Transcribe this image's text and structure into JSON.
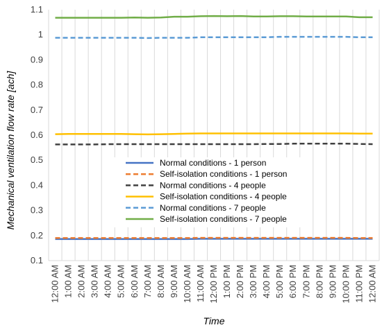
{
  "chart_data": {
    "type": "line",
    "xlabel": "Time",
    "ylabel": "Mechanical ventilation flow rate [ach]",
    "ylim": [
      0.1,
      1.1
    ],
    "yticks": [
      0.1,
      0.2,
      0.3,
      0.4,
      0.5,
      0.6,
      0.7,
      0.8,
      0.9,
      1,
      1.1
    ],
    "ytick_labels": [
      "0.1",
      "0.2",
      "0.3",
      "0.4",
      "0.5",
      "0.6",
      "0.7",
      "0.8",
      "0.9",
      "1",
      "1.1"
    ],
    "grid": "vertical",
    "legend_position": "center",
    "categories": [
      "12:00 AM",
      "1:00 AM",
      "2:00 AM",
      "3:00 AM",
      "4:00 AM",
      "5:00 AM",
      "6:00 AM",
      "7:00 AM",
      "8:00 AM",
      "9:00 AM",
      "10:00 AM",
      "11:00 AM",
      "12:00 PM",
      "1:00 PM",
      "2:00 PM",
      "3:00 PM",
      "4:00 PM",
      "5:00 PM",
      "6:00 PM",
      "7:00 PM",
      "8:00 PM",
      "9:00 PM",
      "10:00 PM",
      "11:00 PM",
      "12:00 AM"
    ],
    "series": [
      {
        "name": "Normal conditions - 1 person",
        "color": "#4472C4",
        "dash": "solid",
        "values": [
          0.186,
          0.186,
          0.186,
          0.186,
          0.186,
          0.186,
          0.186,
          0.186,
          0.186,
          0.186,
          0.186,
          0.187,
          0.187,
          0.187,
          0.187,
          0.187,
          0.187,
          0.187,
          0.187,
          0.187,
          0.187,
          0.187,
          0.187,
          0.187,
          0.187
        ]
      },
      {
        "name": "Self-isolation conditions - 1 person",
        "color": "#ED7D31",
        "dash": "dashed",
        "values": [
          0.19,
          0.19,
          0.19,
          0.19,
          0.19,
          0.19,
          0.19,
          0.19,
          0.19,
          0.19,
          0.19,
          0.191,
          0.191,
          0.191,
          0.191,
          0.191,
          0.191,
          0.191,
          0.191,
          0.191,
          0.191,
          0.191,
          0.191,
          0.19,
          0.19
        ]
      },
      {
        "name": "Normal conditions - 4 people",
        "color": "#404040",
        "dash": "dashed",
        "values": [
          0.563,
          0.563,
          0.563,
          0.563,
          0.564,
          0.564,
          0.564,
          0.564,
          0.564,
          0.564,
          0.564,
          0.564,
          0.564,
          0.564,
          0.564,
          0.564,
          0.565,
          0.565,
          0.566,
          0.566,
          0.566,
          0.566,
          0.566,
          0.565,
          0.564
        ]
      },
      {
        "name": "Self-isolation conditions - 4 people",
        "color": "#FFC000",
        "dash": "solid",
        "values": [
          0.604,
          0.605,
          0.605,
          0.605,
          0.605,
          0.605,
          0.604,
          0.603,
          0.604,
          0.605,
          0.606,
          0.607,
          0.607,
          0.607,
          0.607,
          0.607,
          0.607,
          0.607,
          0.607,
          0.607,
          0.607,
          0.607,
          0.607,
          0.606,
          0.606
        ]
      },
      {
        "name": "Normal conditions - 7 people",
        "color": "#5B9BD5",
        "dash": "dashed",
        "values": [
          0.988,
          0.988,
          0.988,
          0.988,
          0.988,
          0.988,
          0.988,
          0.987,
          0.988,
          0.988,
          0.988,
          0.99,
          0.99,
          0.99,
          0.99,
          0.99,
          0.99,
          0.992,
          0.992,
          0.992,
          0.992,
          0.992,
          0.992,
          0.99,
          0.99
        ]
      },
      {
        "name": "Self-isolation conditions - 7 people",
        "color": "#70AD47",
        "dash": "solid",
        "values": [
          1.068,
          1.068,
          1.068,
          1.068,
          1.068,
          1.068,
          1.069,
          1.068,
          1.069,
          1.072,
          1.072,
          1.074,
          1.075,
          1.074,
          1.075,
          1.073,
          1.073,
          1.074,
          1.074,
          1.073,
          1.073,
          1.073,
          1.073,
          1.07,
          1.07
        ]
      }
    ]
  }
}
